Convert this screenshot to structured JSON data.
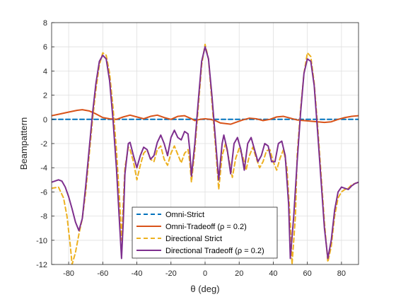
{
  "chart_data": {
    "type": "line",
    "title": "",
    "xlabel": "θ (deg)",
    "ylabel": "Beampattern",
    "xlim": [
      -90,
      90
    ],
    "ylim": [
      -12,
      8
    ],
    "xticks": [
      -80,
      -60,
      -40,
      -20,
      0,
      20,
      40,
      60,
      80
    ],
    "yticks": [
      -12,
      -10,
      -8,
      -6,
      -4,
      -2,
      0,
      2,
      4,
      6,
      8
    ],
    "grid": true,
    "legend_position": "bottom-center",
    "series": [
      {
        "name": "Omni-Strict",
        "color": "#0072BD",
        "style": "dashed",
        "points": [
          [
            -90,
            0
          ],
          [
            90,
            0
          ]
        ]
      },
      {
        "name": "Omni-Tradeoff (ρ = 0.2)",
        "color": "#D95319",
        "style": "solid",
        "points": [
          [
            -90,
            0.3
          ],
          [
            -85,
            0.45
          ],
          [
            -80,
            0.6
          ],
          [
            -75,
            0.75
          ],
          [
            -72,
            0.8
          ],
          [
            -68,
            0.7
          ],
          [
            -64,
            0.45
          ],
          [
            -60,
            0.15
          ],
          [
            -56,
            0.05
          ],
          [
            -52,
            0.0
          ],
          [
            -48,
            0.2
          ],
          [
            -44,
            0.35
          ],
          [
            -40,
            0.2
          ],
          [
            -36,
            0.05
          ],
          [
            -32,
            0.25
          ],
          [
            -28,
            0.35
          ],
          [
            -24,
            0.15
          ],
          [
            -20,
            0.0
          ],
          [
            -16,
            0.25
          ],
          [
            -12,
            0.3
          ],
          [
            -8,
            0.05
          ],
          [
            -6,
            -0.1
          ],
          [
            -3,
            0.0
          ],
          [
            0,
            0.05
          ],
          [
            3,
            0.0
          ],
          [
            6,
            -0.1
          ],
          [
            9,
            -0.3
          ],
          [
            12,
            -0.35
          ],
          [
            15,
            -0.4
          ],
          [
            18,
            -0.25
          ],
          [
            22,
            -0.05
          ],
          [
            26,
            0.1
          ],
          [
            30,
            0.05
          ],
          [
            34,
            -0.1
          ],
          [
            38,
            0.0
          ],
          [
            42,
            0.2
          ],
          [
            46,
            0.25
          ],
          [
            50,
            0.1
          ],
          [
            54,
            -0.05
          ],
          [
            58,
            -0.1
          ],
          [
            62,
            -0.15
          ],
          [
            66,
            -0.2
          ],
          [
            70,
            -0.25
          ],
          [
            74,
            -0.2
          ],
          [
            78,
            0.0
          ],
          [
            82,
            0.15
          ],
          [
            86,
            0.25
          ],
          [
            90,
            0.3
          ]
        ]
      },
      {
        "name": "Directional Strict",
        "color": "#EDB120",
        "style": "dashed",
        "points": [
          [
            -90,
            -5.7
          ],
          [
            -86,
            -5.6
          ],
          [
            -83,
            -6.5
          ],
          [
            -81,
            -8.0
          ],
          [
            -79,
            -10.5
          ],
          [
            -78,
            -12.0
          ],
          [
            -76,
            -11.0
          ],
          [
            -74,
            -9.5
          ],
          [
            -72,
            -8.2
          ],
          [
            -70,
            -6.0
          ],
          [
            -68,
            -3.0
          ],
          [
            -66,
            0.0
          ],
          [
            -64,
            2.5
          ],
          [
            -62,
            4.5
          ],
          [
            -60,
            5.5
          ],
          [
            -58,
            5.3
          ],
          [
            -56,
            3.8
          ],
          [
            -54,
            1.0
          ],
          [
            -52,
            -2.5
          ],
          [
            -50,
            -7.0
          ],
          [
            -49,
            -10.0
          ],
          [
            -48,
            -7.0
          ],
          [
            -47,
            -4.0
          ],
          [
            -45,
            -2.3
          ],
          [
            -44,
            -2.5
          ],
          [
            -42,
            -3.5
          ],
          [
            -40,
            -5.0
          ],
          [
            -38,
            -3.8
          ],
          [
            -36,
            -2.8
          ],
          [
            -34,
            -2.5
          ],
          [
            -32,
            -3.3
          ],
          [
            -30,
            -3.5
          ],
          [
            -28,
            -2.5
          ],
          [
            -26,
            -2.2
          ],
          [
            -24,
            -3.3
          ],
          [
            -22,
            -3.8
          ],
          [
            -20,
            -2.8
          ],
          [
            -18,
            -2.2
          ],
          [
            -16,
            -2.9
          ],
          [
            -14,
            -3.6
          ],
          [
            -12,
            -2.8
          ],
          [
            -10,
            -2.5
          ],
          [
            -9,
            -3.5
          ],
          [
            -8,
            -5.2
          ],
          [
            -6,
            -2.5
          ],
          [
            -4,
            1.0
          ],
          [
            -2,
            4.5
          ],
          [
            0,
            6.2
          ],
          [
            2,
            5.0
          ],
          [
            4,
            1.5
          ],
          [
            6,
            -2.0
          ],
          [
            8,
            -5.8
          ],
          [
            10,
            -3.0
          ],
          [
            12,
            -2.0
          ],
          [
            14,
            -3.3
          ],
          [
            16,
            -4.8
          ],
          [
            18,
            -3.2
          ],
          [
            20,
            -2.4
          ],
          [
            22,
            -3.0
          ],
          [
            24,
            -4.2
          ],
          [
            26,
            -3.0
          ],
          [
            28,
            -2.3
          ],
          [
            30,
            -3.2
          ],
          [
            32,
            -4.0
          ],
          [
            34,
            -3.5
          ],
          [
            36,
            -2.6
          ],
          [
            38,
            -2.5
          ],
          [
            40,
            -3.5
          ],
          [
            42,
            -4.2
          ],
          [
            44,
            -3.2
          ],
          [
            46,
            -2.5
          ],
          [
            48,
            -4.0
          ],
          [
            50,
            -8.5
          ],
          [
            51,
            -12.0
          ],
          [
            53,
            -8.0
          ],
          [
            54,
            -3.0
          ],
          [
            56,
            0.8
          ],
          [
            58,
            3.8
          ],
          [
            60,
            5.5
          ],
          [
            62,
            5.2
          ],
          [
            64,
            3.0
          ],
          [
            66,
            -0.5
          ],
          [
            68,
            -4.5
          ],
          [
            70,
            -8.5
          ],
          [
            72,
            -11.8
          ],
          [
            74,
            -10.5
          ],
          [
            76,
            -8.0
          ],
          [
            78,
            -6.5
          ],
          [
            80,
            -6.0
          ],
          [
            82,
            -5.8
          ],
          [
            84,
            -5.7
          ],
          [
            86,
            -5.4
          ],
          [
            88,
            -5.3
          ],
          [
            90,
            -5.2
          ]
        ]
      },
      {
        "name": "Directional Tradeoff (ρ = 0.2)",
        "color": "#7E2F8E",
        "style": "solid",
        "points": [
          [
            -90,
            -5.2
          ],
          [
            -86,
            -5.0
          ],
          [
            -84,
            -5.1
          ],
          [
            -82,
            -5.6
          ],
          [
            -80,
            -6.4
          ],
          [
            -78,
            -7.4
          ],
          [
            -76,
            -8.5
          ],
          [
            -74,
            -9.2
          ],
          [
            -72,
            -8.2
          ],
          [
            -70,
            -5.5
          ],
          [
            -68,
            -2.5
          ],
          [
            -66,
            0.5
          ],
          [
            -64,
            3.0
          ],
          [
            -62,
            4.8
          ],
          [
            -60,
            5.3
          ],
          [
            -58,
            5.0
          ],
          [
            -56,
            3.2
          ],
          [
            -54,
            0.0
          ],
          [
            -52,
            -4.0
          ],
          [
            -50,
            -9.0
          ],
          [
            -49,
            -11.5
          ],
          [
            -48,
            -8.5
          ],
          [
            -47,
            -4.5
          ],
          [
            -45,
            -2.0
          ],
          [
            -44,
            -1.9
          ],
          [
            -42,
            -3.0
          ],
          [
            -40,
            -4.0
          ],
          [
            -38,
            -3.0
          ],
          [
            -36,
            -2.3
          ],
          [
            -34,
            -2.5
          ],
          [
            -32,
            -3.3
          ],
          [
            -30,
            -3.0
          ],
          [
            -28,
            -1.9
          ],
          [
            -26,
            -1.3
          ],
          [
            -24,
            -2.0
          ],
          [
            -22,
            -3.0
          ],
          [
            -20,
            -1.5
          ],
          [
            -18,
            -0.9
          ],
          [
            -16,
            -1.5
          ],
          [
            -14,
            -1.7
          ],
          [
            -12,
            -1.0
          ],
          [
            -10,
            -1.2
          ],
          [
            -9,
            -2.5
          ],
          [
            -8,
            -4.7
          ],
          [
            -6,
            -2.0
          ],
          [
            -4,
            1.5
          ],
          [
            -2,
            4.8
          ],
          [
            0,
            6.0
          ],
          [
            2,
            5.0
          ],
          [
            4,
            2.0
          ],
          [
            6,
            -1.5
          ],
          [
            8,
            -5.0
          ],
          [
            10,
            -2.0
          ],
          [
            11,
            -1.3
          ],
          [
            13,
            -2.5
          ],
          [
            15,
            -4.5
          ],
          [
            17,
            -2.0
          ],
          [
            19,
            -1.5
          ],
          [
            21,
            -2.5
          ],
          [
            23,
            -4.2
          ],
          [
            25,
            -2.0
          ],
          [
            27,
            -1.5
          ],
          [
            29,
            -2.5
          ],
          [
            31,
            -3.5
          ],
          [
            33,
            -3.0
          ],
          [
            35,
            -2.0
          ],
          [
            37,
            -2.2
          ],
          [
            39,
            -3.5
          ],
          [
            41,
            -3.5
          ],
          [
            43,
            -2.0
          ],
          [
            45,
            -1.8
          ],
          [
            47,
            -3.0
          ],
          [
            49,
            -7.0
          ],
          [
            50,
            -11.5
          ],
          [
            52,
            -8.0
          ],
          [
            54,
            -3.5
          ],
          [
            56,
            0.5
          ],
          [
            58,
            3.8
          ],
          [
            60,
            5.0
          ],
          [
            62,
            4.8
          ],
          [
            64,
            2.8
          ],
          [
            66,
            -1.0
          ],
          [
            68,
            -5.0
          ],
          [
            70,
            -9.0
          ],
          [
            72,
            -11.5
          ],
          [
            74,
            -10.0
          ],
          [
            76,
            -7.5
          ],
          [
            78,
            -6.0
          ],
          [
            80,
            -5.6
          ],
          [
            82,
            -5.7
          ],
          [
            84,
            -5.8
          ],
          [
            86,
            -5.5
          ],
          [
            88,
            -5.3
          ],
          [
            90,
            -5.2
          ]
        ]
      }
    ]
  }
}
